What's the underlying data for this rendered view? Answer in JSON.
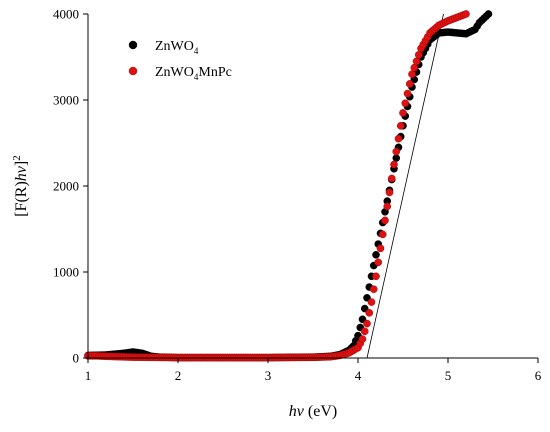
{
  "chart_data": {
    "type": "scatter",
    "xlabel": {
      "main": "hν",
      "unit": "(eV)"
    },
    "ylabel": {
      "main": "[F(R)hν]",
      "sup": "2"
    },
    "xlim": [
      1,
      6
    ],
    "ylim": [
      0,
      4000
    ],
    "xticks": [
      "1",
      "2",
      "3",
      "4",
      "5",
      "6"
    ],
    "yticks": [
      "0",
      "1000",
      "2000",
      "3000",
      "4000"
    ],
    "grid": false,
    "legend_position": "top-left",
    "series": [
      {
        "label_main": "ZnWO",
        "label_sub": "4",
        "label_rest": "",
        "color": "#000000",
        "points": [
          [
            1.0,
            30
          ],
          [
            1.2,
            35
          ],
          [
            1.4,
            55
          ],
          [
            1.5,
            70
          ],
          [
            1.6,
            55
          ],
          [
            1.7,
            20
          ],
          [
            1.8,
            10
          ],
          [
            2.0,
            5
          ],
          [
            2.5,
            5
          ],
          [
            3.0,
            5
          ],
          [
            3.5,
            10
          ],
          [
            3.7,
            20
          ],
          [
            3.8,
            40
          ],
          [
            3.9,
            90
          ],
          [
            3.95,
            140
          ],
          [
            4.0,
            260
          ],
          [
            4.05,
            450
          ],
          [
            4.1,
            700
          ],
          [
            4.2,
            1200
          ],
          [
            4.3,
            1700
          ],
          [
            4.4,
            2200
          ],
          [
            4.5,
            2700
          ],
          [
            4.6,
            3150
          ],
          [
            4.7,
            3500
          ],
          [
            4.8,
            3700
          ],
          [
            4.9,
            3780
          ],
          [
            5.0,
            3790
          ],
          [
            5.1,
            3780
          ],
          [
            5.2,
            3770
          ],
          [
            5.3,
            3820
          ],
          [
            5.35,
            3900
          ],
          [
            5.45,
            4000
          ]
        ]
      },
      {
        "label_main": "ZnWO",
        "label_sub": "4",
        "label_rest": "MnPc",
        "color": "#dd1111",
        "points": [
          [
            1.0,
            25
          ],
          [
            1.1,
            25
          ],
          [
            1.2,
            20
          ],
          [
            1.5,
            10
          ],
          [
            2.0,
            5
          ],
          [
            2.5,
            5
          ],
          [
            3.0,
            5
          ],
          [
            3.5,
            8
          ],
          [
            3.7,
            15
          ],
          [
            3.8,
            30
          ],
          [
            3.9,
            60
          ],
          [
            4.0,
            120
          ],
          [
            4.05,
            220
          ],
          [
            4.1,
            400
          ],
          [
            4.15,
            650
          ],
          [
            4.2,
            950
          ],
          [
            4.3,
            1600
          ],
          [
            4.4,
            2250
          ],
          [
            4.5,
            2850
          ],
          [
            4.6,
            3300
          ],
          [
            4.7,
            3600
          ],
          [
            4.8,
            3780
          ],
          [
            4.9,
            3870
          ],
          [
            5.0,
            3920
          ],
          [
            5.1,
            3960
          ],
          [
            5.2,
            4000
          ]
        ]
      }
    ],
    "tangent_line": [
      [
        4.1,
        0
      ],
      [
        4.95,
        4000
      ]
    ]
  }
}
